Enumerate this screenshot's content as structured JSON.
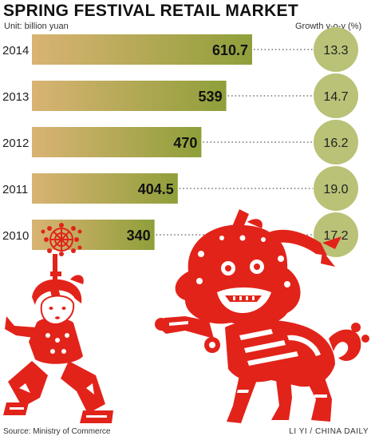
{
  "header": {
    "title": "SPRING FESTIVAL RETAIL MARKET",
    "unit_label": "Unit: billion yuan",
    "growth_label": "Growth y-o-y (%)"
  },
  "footer": {
    "source": "Source: Ministry of Commerce",
    "credit": "LI YI / CHINA DAILY"
  },
  "colors": {
    "bar_start": "#d9b373",
    "bar_end": "#8f9f3a",
    "circle_fill": "#b9c276",
    "papercut_red": "#e2231a"
  },
  "chart_data": {
    "type": "bar",
    "orientation": "horizontal",
    "title": "SPRING FESTIVAL RETAIL MARKET",
    "unit": "billion yuan",
    "categories": [
      "2014",
      "2013",
      "2012",
      "2011",
      "2010"
    ],
    "values": [
      610.7,
      539,
      470,
      404.5,
      340
    ],
    "value_labels": [
      "610.7",
      "539",
      "470",
      "404.5",
      "340"
    ],
    "growth_label": "Growth y-o-y (%)",
    "growth": [
      13.3,
      14.7,
      16.2,
      19.0,
      17.2
    ],
    "growth_labels": [
      "13.3",
      "14.7",
      "16.2",
      "19.0",
      "17.2"
    ],
    "xlim": [
      0,
      610.7
    ],
    "grid": false
  }
}
